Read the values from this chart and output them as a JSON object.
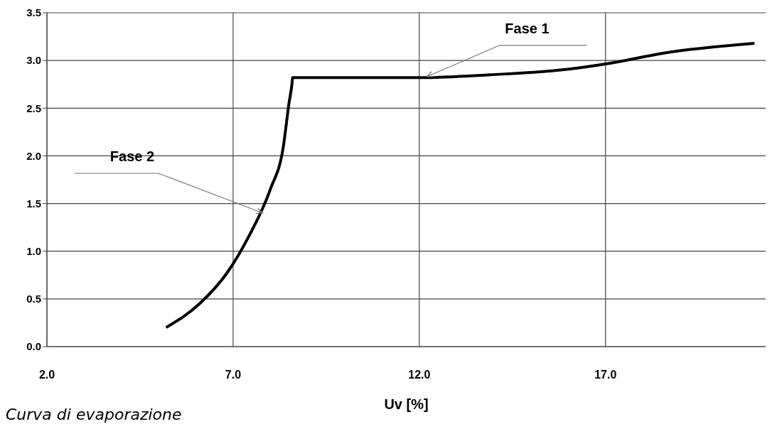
{
  "chart_data": {
    "type": "line",
    "xlabel": "Uv [%]",
    "series": [
      {
        "color": "#000000",
        "x": [
          5.2,
          6.1,
          6.85,
          7.4,
          8.0,
          8.35,
          8.5,
          8.58,
          8.6,
          10.0,
          12.0,
          13.9,
          15.8,
          17.1,
          18.6,
          21.0
        ],
        "values": [
          0.2,
          0.45,
          0.78,
          1.14,
          1.65,
          2.1,
          2.55,
          2.75,
          2.82,
          2.82,
          2.82,
          2.85,
          2.9,
          2.97,
          3.08,
          3.18
        ]
      }
    ],
    "xlim": [
      2,
      21.3
    ],
    "xticks": [
      {
        "value": 2,
        "label": "2.0"
      },
      {
        "value": 7,
        "label": "7.0"
      },
      {
        "value": 12,
        "label": "12.0"
      },
      {
        "value": 17,
        "label": "17.0"
      }
    ],
    "ylim": [
      0,
      3.5
    ],
    "yticks": [
      {
        "value": 0,
        "label": "0.0"
      },
      {
        "value": 0.5,
        "label": "0.5"
      },
      {
        "value": 1,
        "label": "1.0"
      },
      {
        "value": 1.5,
        "label": "1.5"
      },
      {
        "value": 2,
        "label": "2.0"
      },
      {
        "value": 2.5,
        "label": "2.5"
      },
      {
        "value": 3,
        "label": "3.0"
      },
      {
        "value": 3.5,
        "label": "3.5"
      }
    ],
    "grid": true,
    "marker": "none",
    "line_style": "solid",
    "annotations": [
      {
        "text": "Fase 1",
        "x": 12.2,
        "y": 2.83
      },
      {
        "text": "Fase 2",
        "x": 7.8,
        "y": 1.4
      },
      "Curva di evaporazione"
    ]
  }
}
